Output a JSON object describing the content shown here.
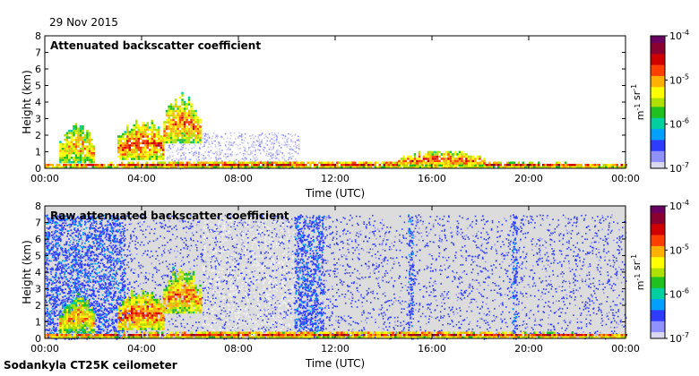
{
  "header": {
    "date": "29 Nov 2015"
  },
  "footer": {
    "instrument": "Sodankyla CT25K ceilometer"
  },
  "colormap": {
    "stops": [
      "#d9d9f0",
      "#9090ff",
      "#2f3cff",
      "#00a0ff",
      "#00d0a0",
      "#20c020",
      "#b0e000",
      "#ffff00",
      "#ffb000",
      "#ff4000",
      "#d00000",
      "#8a0030",
      "#6a0060"
    ],
    "missing_color": "#dcdcdc"
  },
  "chart_data": [
    {
      "type": "heatmap",
      "title": "Attenuated backscatter coefficient",
      "xlabel": "Time (UTC)",
      "ylabel": "Height (km)",
      "xlim": [
        0,
        24
      ],
      "ylim": [
        0,
        8
      ],
      "xticks": [
        "00:00",
        "04:00",
        "08:00",
        "12:00",
        "16:00",
        "20:00",
        "00:00"
      ],
      "yticks": [
        "0",
        "1",
        "2",
        "3",
        "4",
        "5",
        "6",
        "7",
        "8"
      ],
      "colorbar": {
        "label": "m-1 sr-1",
        "scale": "log",
        "range": [
          1e-07,
          0.0001
        ],
        "ticks": [
          "10-4",
          "10-5",
          "10-6",
          "10-7"
        ]
      },
      "features": [
        {
          "name": "boundary layer",
          "t_start": 0.0,
          "t_end": 24.0,
          "top_km": 0.35,
          "level": 0.75
        },
        {
          "name": "cloud",
          "t_start": 0.6,
          "t_end": 2.0,
          "base_km": 0.3,
          "top_km": 2.5,
          "level": 0.6
        },
        {
          "name": "cloud",
          "t_start": 3.0,
          "t_end": 4.9,
          "base_km": 0.5,
          "top_km": 2.8,
          "level": 0.7
        },
        {
          "name": "cloud",
          "t_start": 4.9,
          "t_end": 6.4,
          "base_km": 1.5,
          "top_km": 4.3,
          "level": 0.65
        },
        {
          "name": "cloud",
          "t_start": 14.6,
          "t_end": 18.2,
          "base_km": 0.1,
          "top_km": 0.95,
          "level": 0.7
        }
      ]
    },
    {
      "type": "heatmap",
      "title": "Raw attenuated backscatter coefficient",
      "xlabel": "Time (UTC)",
      "ylabel": "Height (km)",
      "xlim": [
        0,
        24
      ],
      "ylim": [
        0,
        8
      ],
      "xticks": [
        "00:00",
        "04:00",
        "08:00",
        "12:00",
        "16:00",
        "20:00",
        "00:00"
      ],
      "yticks": [
        "0",
        "1",
        "2",
        "3",
        "4",
        "5",
        "6",
        "7",
        "8"
      ],
      "colorbar": {
        "label": "m-1 sr-1",
        "scale": "log",
        "range": [
          1e-07,
          0.0001
        ],
        "ticks": [
          "10-4",
          "10-5",
          "10-6",
          "10-7"
        ]
      },
      "features": [
        {
          "name": "noise band",
          "t_start": 0.0,
          "t_end": 3.3,
          "base_km": 0.0,
          "top_km": 7.5,
          "level": 0.2
        },
        {
          "name": "noise band",
          "t_start": 10.3,
          "t_end": 11.5,
          "base_km": 0.0,
          "top_km": 7.5,
          "level": 0.2
        },
        {
          "name": "noise band",
          "t_start": 15.0,
          "t_end": 15.2,
          "base_km": 0.0,
          "top_km": 7.5,
          "level": 0.2
        },
        {
          "name": "noise band",
          "t_start": 19.3,
          "t_end": 19.5,
          "base_km": 0.0,
          "top_km": 7.5,
          "level": 0.2
        },
        {
          "name": "boundary layer",
          "t_start": 0.0,
          "t_end": 24.0,
          "top_km": 0.35,
          "level": 0.75
        },
        {
          "name": "cloud",
          "t_start": 0.6,
          "t_end": 2.0,
          "base_km": 0.3,
          "top_km": 2.5,
          "level": 0.6
        },
        {
          "name": "cloud",
          "t_start": 3.0,
          "t_end": 4.9,
          "base_km": 0.5,
          "top_km": 2.8,
          "level": 0.7
        },
        {
          "name": "cloud",
          "t_start": 4.9,
          "t_end": 6.4,
          "base_km": 1.5,
          "top_km": 4.3,
          "level": 0.65
        }
      ]
    }
  ]
}
